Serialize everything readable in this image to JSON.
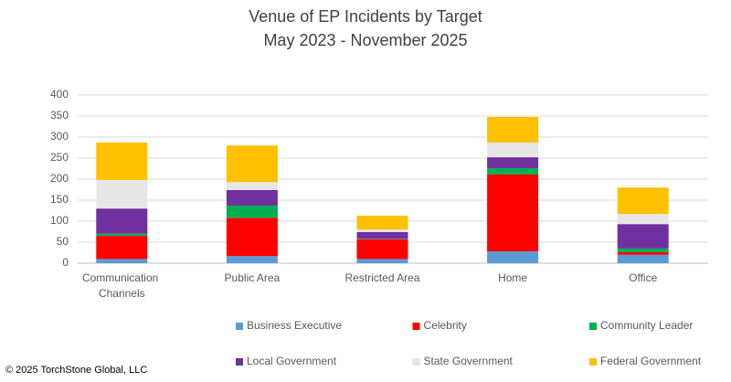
{
  "chart_data": {
    "type": "stacked_bar",
    "title": "Venue of EP Incidents by Target",
    "subtitle": "May 2023 - November 2025",
    "categories": [
      "Communication Channels",
      "Public Area",
      "Restricted Area",
      "Home",
      "Office"
    ],
    "series": [
      {
        "name": "Business Executive",
        "color": "#5b9bd5",
        "values": [
          10,
          17,
          10,
          28,
          20
        ]
      },
      {
        "name": "Celebrity",
        "color": "#ff0000",
        "values": [
          55,
          91,
          47,
          183,
          6
        ]
      },
      {
        "name": "Community Leader",
        "color": "#00b050",
        "values": [
          5,
          29,
          1,
          15,
          9
        ]
      },
      {
        "name": "Local Government",
        "color": "#7030a0",
        "values": [
          60,
          37,
          16,
          26,
          58
        ]
      },
      {
        "name": "State Government",
        "color": "#e7e6e6",
        "values": [
          68,
          19,
          6,
          35,
          24
        ]
      },
      {
        "name": "Federal Government",
        "color": "#ffc000",
        "values": [
          89,
          87,
          33,
          61,
          63
        ]
      }
    ],
    "ylim": [
      0,
      400
    ],
    "yticks": [
      0,
      50,
      100,
      150,
      200,
      250,
      300,
      350,
      400
    ],
    "grid": true,
    "legend": "bottom",
    "source": "© 2025 TorchStone Global, LLC"
  }
}
